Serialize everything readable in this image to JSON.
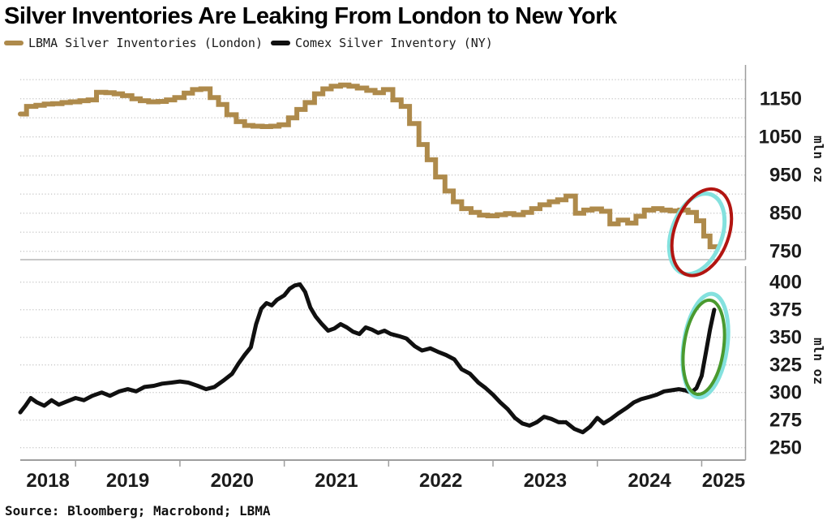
{
  "title": "Silver Inventories Are Leaking From London to New York",
  "legend": [
    {
      "label": "LBMA Silver Inventories (London)",
      "color": "#ae8a4b"
    },
    {
      "label": "Comex Silver Inventory (NY)",
      "color": "#101010"
    }
  ],
  "source": "Source: Bloomberg; Macrobond; LBMA",
  "colors": {
    "lbma_line": "#ae8a4b",
    "comex_line": "#101010",
    "red_circle": "#b21511",
    "green_circle": "#4a9a2f",
    "cyan_glow": "#84e1de",
    "gridline": "#c9c9c9",
    "axis": "#9e9e9e"
  },
  "chart_data": {
    "type": "line",
    "x_year_labels": [
      "2018",
      "2019",
      "2020",
      "2021",
      "2022",
      "2023",
      "2024",
      "2025"
    ],
    "x_tick_years": [
      2019,
      2020,
      2021,
      2022,
      2023,
      2024,
      2025
    ],
    "xlim": [
      2018.47,
      2025.42
    ],
    "panels": [
      {
        "name": "london",
        "ylabel": "mln oz",
        "ylim": [
          728,
          1207
        ],
        "yticks_labeled": [
          750,
          850,
          950,
          1050,
          1150
        ],
        "ygrid": [
          750,
          800,
          850,
          900,
          950,
          1000,
          1050,
          1100,
          1150,
          1200
        ],
        "series": {
          "name": "LBMA Silver Inventories (London)",
          "color": "#ae8a4b",
          "style": "step",
          "points": [
            [
              2018.47,
              1110
            ],
            [
              2018.53,
              1130
            ],
            [
              2018.62,
              1133
            ],
            [
              2018.7,
              1136
            ],
            [
              2018.78,
              1137
            ],
            [
              2018.87,
              1140
            ],
            [
              2018.95,
              1142
            ],
            [
              2019.04,
              1145
            ],
            [
              2019.12,
              1147
            ],
            [
              2019.2,
              1167
            ],
            [
              2019.29,
              1166
            ],
            [
              2019.37,
              1163
            ],
            [
              2019.45,
              1158
            ],
            [
              2019.54,
              1150
            ],
            [
              2019.62,
              1145
            ],
            [
              2019.7,
              1142
            ],
            [
              2019.79,
              1143
            ],
            [
              2019.87,
              1147
            ],
            [
              2019.95,
              1153
            ],
            [
              2020.04,
              1165
            ],
            [
              2020.12,
              1174
            ],
            [
              2020.2,
              1176
            ],
            [
              2020.29,
              1153
            ],
            [
              2020.37,
              1135
            ],
            [
              2020.45,
              1108
            ],
            [
              2020.54,
              1090
            ],
            [
              2020.62,
              1080
            ],
            [
              2020.7,
              1078
            ],
            [
              2020.79,
              1077
            ],
            [
              2020.87,
              1078
            ],
            [
              2020.95,
              1082
            ],
            [
              2021.04,
              1100
            ],
            [
              2021.12,
              1122
            ],
            [
              2021.2,
              1140
            ],
            [
              2021.29,
              1163
            ],
            [
              2021.37,
              1176
            ],
            [
              2021.45,
              1183
            ],
            [
              2021.54,
              1186
            ],
            [
              2021.62,
              1183
            ],
            [
              2021.7,
              1178
            ],
            [
              2021.79,
              1172
            ],
            [
              2021.87,
              1166
            ],
            [
              2021.95,
              1174
            ],
            [
              2022.04,
              1147
            ],
            [
              2022.12,
              1130
            ],
            [
              2022.2,
              1085
            ],
            [
              2022.29,
              1030
            ],
            [
              2022.37,
              990
            ],
            [
              2022.45,
              945
            ],
            [
              2022.54,
              908
            ],
            [
              2022.62,
              880
            ],
            [
              2022.7,
              862
            ],
            [
              2022.79,
              852
            ],
            [
              2022.87,
              845
            ],
            [
              2022.95,
              843
            ],
            [
              2023.04,
              846
            ],
            [
              2023.12,
              849
            ],
            [
              2023.2,
              846
            ],
            [
              2023.29,
              852
            ],
            [
              2023.37,
              862
            ],
            [
              2023.45,
              872
            ],
            [
              2023.54,
              880
            ],
            [
              2023.62,
              885
            ],
            [
              2023.7,
              895
            ],
            [
              2023.79,
              850
            ],
            [
              2023.87,
              858
            ],
            [
              2023.95,
              861
            ],
            [
              2024.04,
              855
            ],
            [
              2024.12,
              822
            ],
            [
              2024.2,
              832
            ],
            [
              2024.29,
              824
            ],
            [
              2024.37,
              842
            ],
            [
              2024.45,
              858
            ],
            [
              2024.54,
              862
            ],
            [
              2024.62,
              858
            ],
            [
              2024.7,
              856
            ],
            [
              2024.79,
              858
            ],
            [
              2024.87,
              852
            ],
            [
              2024.95,
              830
            ],
            [
              2025.02,
              790
            ],
            [
              2025.08,
              762
            ],
            [
              2025.15,
              760
            ]
          ]
        }
      },
      {
        "name": "new-york",
        "ylabel": "mln oz",
        "ylim": [
          239,
          414
        ],
        "yticks_labeled": [
          250,
          275,
          300,
          325,
          350,
          375,
          400
        ],
        "ygrid": [
          250,
          275,
          300,
          325,
          350,
          375,
          400
        ],
        "series": {
          "name": "Comex Silver Inventory (NY)",
          "color": "#101010",
          "style": "linear",
          "points": [
            [
              2018.47,
              282
            ],
            [
              2018.52,
              288
            ],
            [
              2018.57,
              295
            ],
            [
              2018.63,
              291
            ],
            [
              2018.7,
              288
            ],
            [
              2018.77,
              293
            ],
            [
              2018.84,
              289
            ],
            [
              2018.92,
              292
            ],
            [
              2019.0,
              295
            ],
            [
              2019.08,
              293
            ],
            [
              2019.16,
              297
            ],
            [
              2019.25,
              300
            ],
            [
              2019.33,
              297
            ],
            [
              2019.42,
              301
            ],
            [
              2019.5,
              303
            ],
            [
              2019.58,
              301
            ],
            [
              2019.66,
              305
            ],
            [
              2019.75,
              306
            ],
            [
              2019.83,
              308
            ],
            [
              2019.92,
              309
            ],
            [
              2020.0,
              310
            ],
            [
              2020.08,
              309
            ],
            [
              2020.17,
              306
            ],
            [
              2020.25,
              303
            ],
            [
              2020.33,
              305
            ],
            [
              2020.42,
              311
            ],
            [
              2020.5,
              317
            ],
            [
              2020.56,
              326
            ],
            [
              2020.62,
              334
            ],
            [
              2020.68,
              341
            ],
            [
              2020.73,
              362
            ],
            [
              2020.78,
              376
            ],
            [
              2020.83,
              381
            ],
            [
              2020.88,
              379
            ],
            [
              2020.93,
              384
            ],
            [
              2021.0,
              388
            ],
            [
              2021.05,
              394
            ],
            [
              2021.1,
              397
            ],
            [
              2021.15,
              398
            ],
            [
              2021.2,
              391
            ],
            [
              2021.25,
              377
            ],
            [
              2021.3,
              369
            ],
            [
              2021.36,
              362
            ],
            [
              2021.42,
              356
            ],
            [
              2021.48,
              358
            ],
            [
              2021.54,
              362
            ],
            [
              2021.6,
              359
            ],
            [
              2021.66,
              355
            ],
            [
              2021.72,
              353
            ],
            [
              2021.78,
              359
            ],
            [
              2021.84,
              357
            ],
            [
              2021.9,
              354
            ],
            [
              2021.96,
              356
            ],
            [
              2022.02,
              353
            ],
            [
              2022.1,
              351
            ],
            [
              2022.17,
              349
            ],
            [
              2022.25,
              342
            ],
            [
              2022.32,
              338
            ],
            [
              2022.4,
              340
            ],
            [
              2022.47,
              337
            ],
            [
              2022.55,
              334
            ],
            [
              2022.63,
              330
            ],
            [
              2022.7,
              321
            ],
            [
              2022.78,
              317
            ],
            [
              2022.86,
              309
            ],
            [
              2022.93,
              304
            ],
            [
              2023.0,
              298
            ],
            [
              2023.07,
              291
            ],
            [
              2023.14,
              285
            ],
            [
              2023.21,
              277
            ],
            [
              2023.28,
              272
            ],
            [
              2023.35,
              270
            ],
            [
              2023.42,
              273
            ],
            [
              2023.49,
              278
            ],
            [
              2023.56,
              276
            ],
            [
              2023.63,
              273
            ],
            [
              2023.7,
              273
            ],
            [
              2023.78,
              267
            ],
            [
              2023.86,
              264
            ],
            [
              2023.93,
              269
            ],
            [
              2024.0,
              277
            ],
            [
              2024.06,
              272
            ],
            [
              2024.13,
              276
            ],
            [
              2024.2,
              281
            ],
            [
              2024.28,
              286
            ],
            [
              2024.35,
              291
            ],
            [
              2024.42,
              294
            ],
            [
              2024.5,
              296
            ],
            [
              2024.57,
              298
            ],
            [
              2024.64,
              301
            ],
            [
              2024.71,
              302
            ],
            [
              2024.78,
              303
            ],
            [
              2024.84,
              302
            ],
            [
              2024.9,
              300
            ],
            [
              2024.95,
              304
            ],
            [
              2025.0,
              315
            ],
            [
              2025.04,
              336
            ],
            [
              2025.08,
              357
            ],
            [
              2025.12,
              375
            ]
          ]
        }
      }
    ],
    "annotations": [
      {
        "name": "red-circle-annotation",
        "shape": "ellipse",
        "panel": 0,
        "x": 2025.0,
        "y": 800,
        "rx_years": 0.26,
        "ry_units": 118,
        "rotate_deg": 20,
        "color": "#b21511",
        "stroke_width": 4,
        "glow_color": "#84e1de",
        "glow_dx": -6,
        "glow_dy": 2,
        "glow_scale": 0.93
      },
      {
        "name": "green-circle-annotation",
        "shape": "ellipse",
        "panel": 1,
        "x": 2025.02,
        "y": 341,
        "rx_years": 0.19,
        "ry_units": 43,
        "rotate_deg": 8,
        "color": "#4a9a2f",
        "stroke_width": 4,
        "glow_color": "#84e1de",
        "glow_dx": 2,
        "glow_dy": -2,
        "glow_scale": 1.1
      }
    ]
  }
}
